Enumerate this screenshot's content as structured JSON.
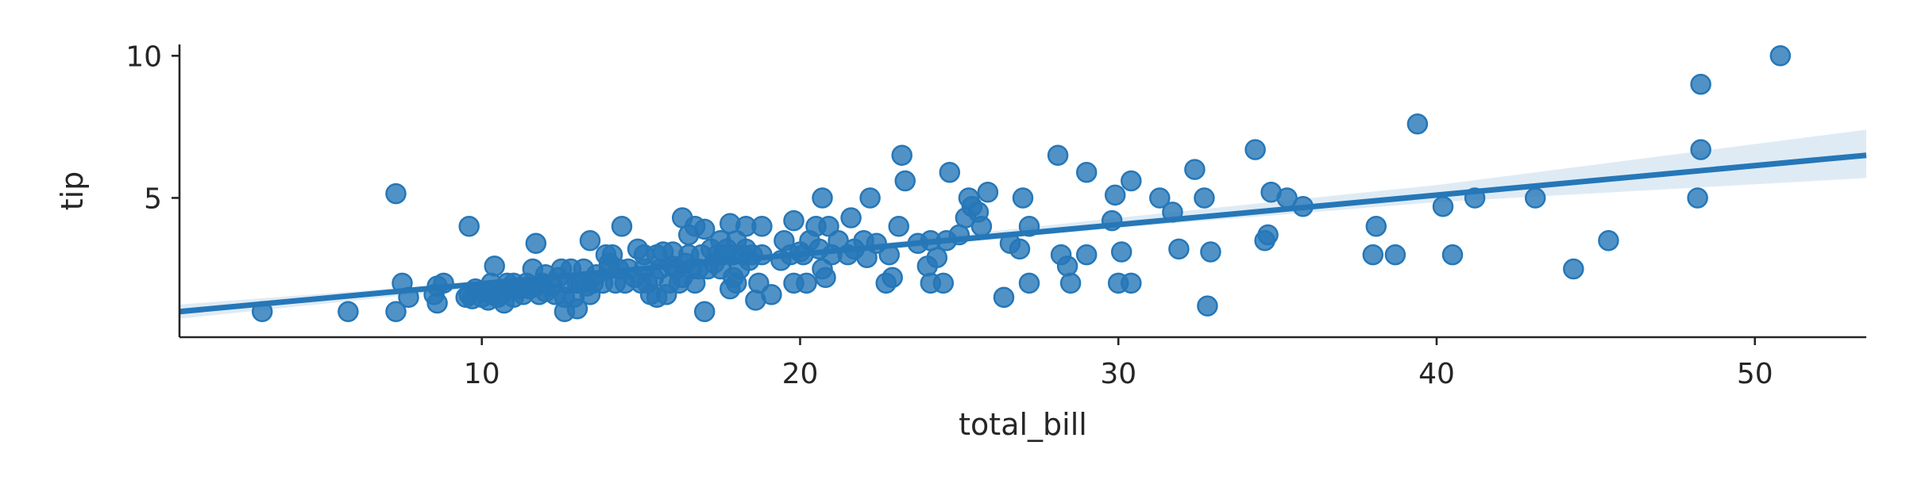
{
  "chart_data": {
    "type": "scatter",
    "xlabel": "total_bill",
    "ylabel": "tip",
    "xlim": [
      0.5,
      53.5
    ],
    "ylim": [
      0.1,
      10.4
    ],
    "xticks": [
      10,
      20,
      30,
      40,
      50
    ],
    "yticks": [
      5,
      10
    ],
    "grid": false,
    "colors": {
      "points": "#2577b8",
      "line": "#2577b8",
      "axis": "#262626"
    },
    "points": [
      [
        3.1,
        1.0
      ],
      [
        5.8,
        1.0
      ],
      [
        7.3,
        5.15
      ],
      [
        7.3,
        1.0
      ],
      [
        7.5,
        2.0
      ],
      [
        7.7,
        1.5
      ],
      [
        8.5,
        1.6
      ],
      [
        8.6,
        1.3
      ],
      [
        8.6,
        1.9
      ],
      [
        8.8,
        2.0
      ],
      [
        9.5,
        1.5
      ],
      [
        9.6,
        4.0
      ],
      [
        9.6,
        1.6
      ],
      [
        9.7,
        1.45
      ],
      [
        9.8,
        1.8
      ],
      [
        10.0,
        1.5
      ],
      [
        10.1,
        1.7
      ],
      [
        10.2,
        1.4
      ],
      [
        10.3,
        2.0
      ],
      [
        10.3,
        1.6
      ],
      [
        10.4,
        2.6
      ],
      [
        10.5,
        1.5
      ],
      [
        10.6,
        1.6
      ],
      [
        10.7,
        1.3
      ],
      [
        10.8,
        2.0
      ],
      [
        10.9,
        1.8
      ],
      [
        11.0,
        1.5
      ],
      [
        11.0,
        2.0
      ],
      [
        11.2,
        1.8
      ],
      [
        11.3,
        1.6
      ],
      [
        11.4,
        2.0
      ],
      [
        11.5,
        1.8
      ],
      [
        11.6,
        2.5
      ],
      [
        11.7,
        1.9
      ],
      [
        11.7,
        3.4
      ],
      [
        11.8,
        1.6
      ],
      [
        11.9,
        2.0
      ],
      [
        12.0,
        1.7
      ],
      [
        12.0,
        2.3
      ],
      [
        12.2,
        1.9
      ],
      [
        12.3,
        1.6
      ],
      [
        12.4,
        2.2
      ],
      [
        12.5,
        2.5
      ],
      [
        12.6,
        1.0
      ],
      [
        12.6,
        1.5
      ],
      [
        12.7,
        2.0
      ],
      [
        12.8,
        2.5
      ],
      [
        12.9,
        1.5
      ],
      [
        13.0,
        1.1
      ],
      [
        13.0,
        2.0
      ],
      [
        13.1,
        2.0
      ],
      [
        13.2,
        2.5
      ],
      [
        13.3,
        1.9
      ],
      [
        13.4,
        1.6
      ],
      [
        13.4,
        3.5
      ],
      [
        13.5,
        2.0
      ],
      [
        13.6,
        2.3
      ],
      [
        13.8,
        2.0
      ],
      [
        13.9,
        3.0
      ],
      [
        14.0,
        2.5
      ],
      [
        14.0,
        2.7
      ],
      [
        14.1,
        3.0
      ],
      [
        14.2,
        2.0
      ],
      [
        14.3,
        2.5
      ],
      [
        14.4,
        4.0
      ],
      [
        14.5,
        2.0
      ],
      [
        14.6,
        2.5
      ],
      [
        14.8,
        2.2
      ],
      [
        14.9,
        3.2
      ],
      [
        15.0,
        2.0
      ],
      [
        15.1,
        2.5
      ],
      [
        15.1,
        3.0
      ],
      [
        15.2,
        2.0
      ],
      [
        15.3,
        1.6
      ],
      [
        15.4,
        2.2
      ],
      [
        15.5,
        3.0
      ],
      [
        15.5,
        1.5
      ],
      [
        15.6,
        2.5
      ],
      [
        15.7,
        3.1
      ],
      [
        15.8,
        1.6
      ],
      [
        15.9,
        2.0
      ],
      [
        16.0,
        2.6
      ],
      [
        16.0,
        3.1
      ],
      [
        16.1,
        2.5
      ],
      [
        16.2,
        2.0
      ],
      [
        16.3,
        2.2
      ],
      [
        16.3,
        4.3
      ],
      [
        16.4,
        2.7
      ],
      [
        16.5,
        3.0
      ],
      [
        16.5,
        3.7
      ],
      [
        16.6,
        2.5
      ],
      [
        16.7,
        2.0
      ],
      [
        16.7,
        4.0
      ],
      [
        16.8,
        2.5
      ],
      [
        16.9,
        3.0
      ],
      [
        17.0,
        3.9
      ],
      [
        17.0,
        1.0
      ],
      [
        17.1,
        2.5
      ],
      [
        17.2,
        3.2
      ],
      [
        17.3,
        2.7
      ],
      [
        17.4,
        3.0
      ],
      [
        17.5,
        3.5
      ],
      [
        17.5,
        2.5
      ],
      [
        17.6,
        3.0
      ],
      [
        17.7,
        3.2
      ],
      [
        17.8,
        1.8
      ],
      [
        17.8,
        4.1
      ],
      [
        17.9,
        3.0
      ],
      [
        17.9,
        2.2
      ],
      [
        18.0,
        2.0
      ],
      [
        18.0,
        3.5
      ],
      [
        18.1,
        2.5
      ],
      [
        18.2,
        3.0
      ],
      [
        18.3,
        4.0
      ],
      [
        18.3,
        3.2
      ],
      [
        18.4,
        2.8
      ],
      [
        18.5,
        3.0
      ],
      [
        18.6,
        1.4
      ],
      [
        18.7,
        2.0
      ],
      [
        18.8,
        4.0
      ],
      [
        18.8,
        3.0
      ],
      [
        19.1,
        1.6
      ],
      [
        19.4,
        2.8
      ],
      [
        19.5,
        3.5
      ],
      [
        19.7,
        3.0
      ],
      [
        19.8,
        4.2
      ],
      [
        19.8,
        2.0
      ],
      [
        20.0,
        3.1
      ],
      [
        20.1,
        3.0
      ],
      [
        20.2,
        2.0
      ],
      [
        20.3,
        3.5
      ],
      [
        20.5,
        4.0
      ],
      [
        20.6,
        3.2
      ],
      [
        20.7,
        2.5
      ],
      [
        20.7,
        5.0
      ],
      [
        20.8,
        2.2
      ],
      [
        20.9,
        4.0
      ],
      [
        21.0,
        3.0
      ],
      [
        21.2,
        3.5
      ],
      [
        21.5,
        3.0
      ],
      [
        21.6,
        4.3
      ],
      [
        21.7,
        3.2
      ],
      [
        22.0,
        3.5
      ],
      [
        22.1,
        2.9
      ],
      [
        22.2,
        5.0
      ],
      [
        22.4,
        3.4
      ],
      [
        22.7,
        2.0
      ],
      [
        22.8,
        3.0
      ],
      [
        22.9,
        2.2
      ],
      [
        23.1,
        4.0
      ],
      [
        23.2,
        6.5
      ],
      [
        23.3,
        5.6
      ],
      [
        23.7,
        3.4
      ],
      [
        24.0,
        2.6
      ],
      [
        24.1,
        2.0
      ],
      [
        24.1,
        3.5
      ],
      [
        24.3,
        2.9
      ],
      [
        24.5,
        2.0
      ],
      [
        24.6,
        3.5
      ],
      [
        24.7,
        5.9
      ],
      [
        25.0,
        3.7
      ],
      [
        25.2,
        4.3
      ],
      [
        25.3,
        5.0
      ],
      [
        25.4,
        4.7
      ],
      [
        25.6,
        4.5
      ],
      [
        25.7,
        4.0
      ],
      [
        25.9,
        5.2
      ],
      [
        26.4,
        1.5
      ],
      [
        26.6,
        3.4
      ],
      [
        26.9,
        3.2
      ],
      [
        27.0,
        5.0
      ],
      [
        27.2,
        4.0
      ],
      [
        27.2,
        2.0
      ],
      [
        28.1,
        6.5
      ],
      [
        28.2,
        3.0
      ],
      [
        28.4,
        2.6
      ],
      [
        28.5,
        2.0
      ],
      [
        29.0,
        3.0
      ],
      [
        29.0,
        5.9
      ],
      [
        29.8,
        4.2
      ],
      [
        29.9,
        5.1
      ],
      [
        30.0,
        2.0
      ],
      [
        30.1,
        3.1
      ],
      [
        30.4,
        2.0
      ],
      [
        30.4,
        5.6
      ],
      [
        31.3,
        5.0
      ],
      [
        31.7,
        4.5
      ],
      [
        31.9,
        3.2
      ],
      [
        32.4,
        6.0
      ],
      [
        32.7,
        5.0
      ],
      [
        32.8,
        1.2
      ],
      [
        32.9,
        3.1
      ],
      [
        34.3,
        6.7
      ],
      [
        34.6,
        3.5
      ],
      [
        34.7,
        3.7
      ],
      [
        34.8,
        5.2
      ],
      [
        35.3,
        5.0
      ],
      [
        35.8,
        4.7
      ],
      [
        38.0,
        3.0
      ],
      [
        38.1,
        4.0
      ],
      [
        38.7,
        3.0
      ],
      [
        39.4,
        7.6
      ],
      [
        40.2,
        4.7
      ],
      [
        40.5,
        3.0
      ],
      [
        41.2,
        5.0
      ],
      [
        43.1,
        5.0
      ],
      [
        44.3,
        2.5
      ],
      [
        45.4,
        3.5
      ],
      [
        48.2,
        5.0
      ],
      [
        48.3,
        6.7
      ],
      [
        48.3,
        9.0
      ],
      [
        50.8,
        10.0
      ]
    ],
    "regression": {
      "x": [
        0.5,
        53.5
      ],
      "y": [
        1.0,
        6.5
      ]
    },
    "confidence_band": {
      "x": [
        0.5,
        10,
        20,
        30,
        40,
        53.5
      ],
      "lower": [
        0.75,
        1.85,
        2.92,
        3.95,
        4.85,
        5.7
      ],
      "upper": [
        1.25,
        2.05,
        3.1,
        4.3,
        5.45,
        7.4
      ]
    }
  }
}
